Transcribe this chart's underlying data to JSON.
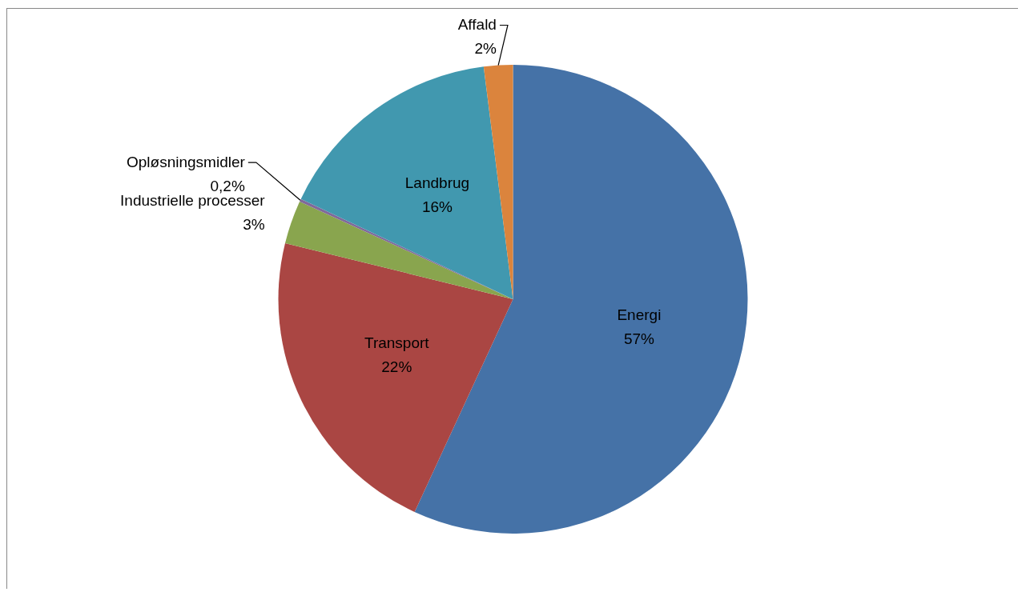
{
  "chart_data": {
    "type": "pie",
    "categories": [
      "Energi",
      "Transport",
      "Industrielle processer",
      "Opløsningsmidler",
      "Landbrug",
      "Affald"
    ],
    "values": [
      57,
      22,
      3,
      0.2,
      16,
      2
    ],
    "value_labels": [
      "57%",
      "22%",
      "3%",
      "0,2%",
      "16%",
      "2%"
    ],
    "colors": [
      "#4572a7",
      "#aa4643",
      "#89a54e",
      "#80699b",
      "#4198af",
      "#db843d"
    ]
  }
}
